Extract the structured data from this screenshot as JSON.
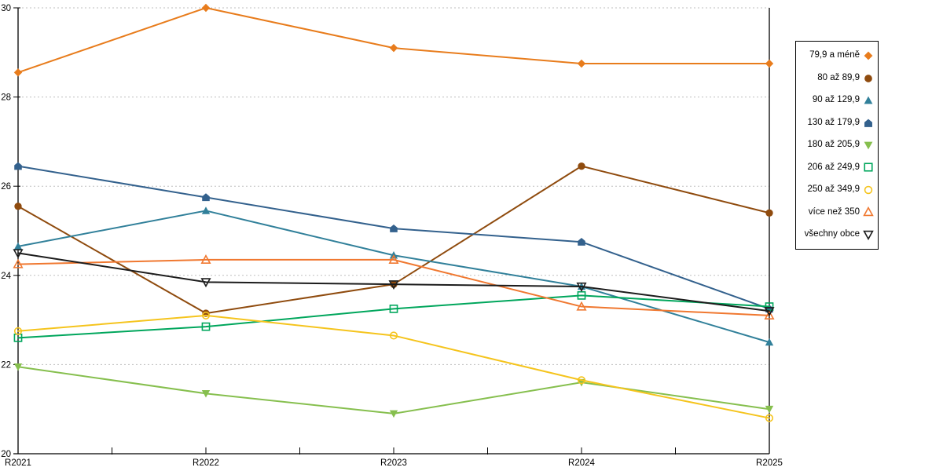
{
  "chart_data": {
    "type": "line",
    "title": "",
    "xlabel": "",
    "ylabel": "",
    "x_categories": [
      "R2021",
      "R2022",
      "R2023",
      "R2024",
      "R2025"
    ],
    "y_ticks": [
      20,
      22,
      24,
      26,
      28,
      30
    ],
    "ylim": [
      20,
      30
    ],
    "grid": "horizontal-dashed",
    "legend_position": "right-outside-box",
    "series": [
      {
        "name": "79,9 a méně",
        "marker": "diamond",
        "style": "filled",
        "color": "#E87C1C",
        "values": [
          28.55,
          30.0,
          29.1,
          28.75,
          28.75
        ]
      },
      {
        "name": "80 až 89,9",
        "marker": "circle",
        "style": "filled",
        "color": "#8F4B0E",
        "values": [
          25.55,
          23.15,
          23.8,
          26.45,
          25.4
        ]
      },
      {
        "name": "90 až 129,9",
        "marker": "triangle-up",
        "style": "filled",
        "color": "#31809A",
        "values": [
          24.65,
          25.45,
          24.45,
          23.75,
          22.5
        ]
      },
      {
        "name": "130 až 179,9",
        "marker": "pentagon",
        "style": "filled",
        "color": "#33618D",
        "values": [
          26.45,
          25.75,
          25.05,
          24.75,
          23.25
        ]
      },
      {
        "name": "180 až 205,9",
        "marker": "triangle-down",
        "style": "filled",
        "color": "#86BF4E",
        "values": [
          21.95,
          21.35,
          20.9,
          21.6,
          21.0
        ]
      },
      {
        "name": "206 až 249,9",
        "marker": "square",
        "style": "open",
        "color": "#00A65C",
        "values": [
          22.6,
          22.85,
          23.25,
          23.55,
          23.3
        ]
      },
      {
        "name": "250 až 349,9",
        "marker": "circle",
        "style": "open",
        "color": "#F5C41D",
        "values": [
          22.75,
          23.1,
          22.65,
          21.65,
          20.8
        ]
      },
      {
        "name": "více než 350",
        "marker": "triangle-up",
        "style": "open",
        "color": "#F07830",
        "values": [
          24.25,
          24.35,
          24.35,
          23.3,
          23.1
        ]
      },
      {
        "name": "všechny obce",
        "marker": "triangle-down",
        "style": "open",
        "color": "#1C1C1C",
        "values": [
          24.5,
          23.85,
          23.8,
          23.75,
          23.2
        ]
      }
    ]
  },
  "colors": {
    "background": "#FFFFFF",
    "axis": "#000000",
    "grid": "#BFBFBF",
    "tick_label": "#000000",
    "legend_border": "#000000"
  }
}
